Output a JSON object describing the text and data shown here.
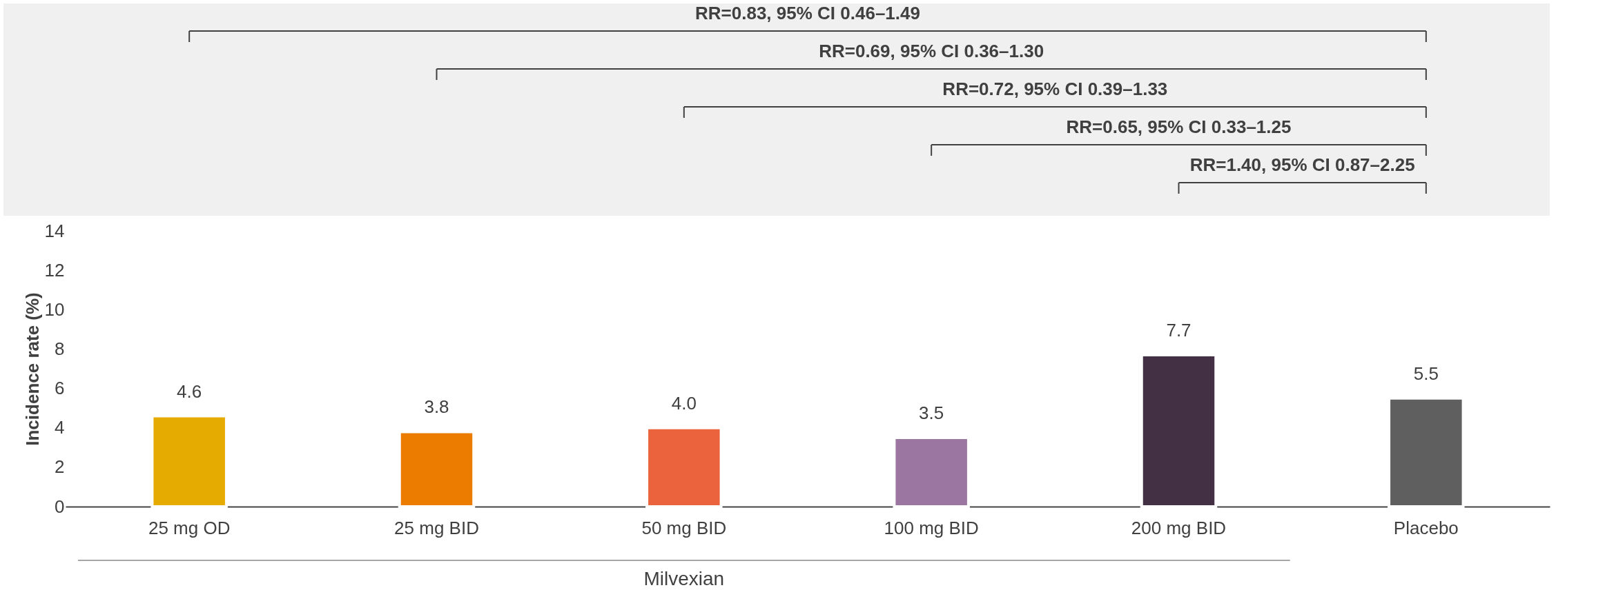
{
  "chart_data": {
    "type": "bar",
    "categories": [
      "25 mg OD",
      "25 mg BID",
      "50 mg BID",
      "100 mg BID",
      "200 mg BID",
      "Placebo"
    ],
    "values": [
      4.6,
      3.8,
      4.0,
      3.5,
      7.7,
      5.5
    ],
    "colors": [
      "#e6ab00",
      "#ec7c00",
      "#eb633c",
      "#9a76a0",
      "#433044",
      "#5f5f5f"
    ],
    "ylabel": "Incidence rate (%)",
    "xlabel": "Milvexian",
    "ylim": [
      0,
      14
    ],
    "yticks": [
      0,
      2,
      4,
      6,
      8,
      10,
      12,
      14
    ],
    "value_labels": [
      "4.6",
      "3.8",
      "4.0",
      "3.5",
      "7.7",
      "5.5"
    ],
    "grid": false,
    "legend": false,
    "annotations": [
      "RR=0.83, 95% CI 0.46–1.49",
      "RR=0.69, 95% CI 0.36–1.30",
      "RR=0.72, 95% CI 0.39–1.33",
      "RR=0.65, 95% CI 0.33–1.25",
      "RR=1.40, 95% CI 0.87–2.25"
    ]
  }
}
